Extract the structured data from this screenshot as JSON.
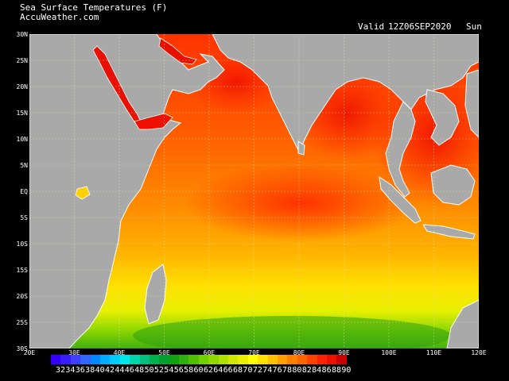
{
  "header": {
    "title": "Sea Surface Temperatures (F)",
    "source": "AccuWeather.com",
    "valid_label": "Valid",
    "valid_time": "12Z06SEP2020",
    "day": "Sun"
  },
  "map": {
    "lat_labels": [
      "30N",
      "25N",
      "20N",
      "15N",
      "10N",
      "5N",
      "EQ",
      "5S",
      "10S",
      "15S",
      "20S",
      "25S",
      "30S"
    ],
    "lon_labels": [
      "20E",
      "30E",
      "40E",
      "50E",
      "60E",
      "70E",
      "80E",
      "90E",
      "100E",
      "110E",
      "120E"
    ],
    "land_color": "#a9a9a9",
    "outline_color": "#ffffff",
    "grid_color": "#e0e0a0"
  },
  "legend": {
    "values": [
      "32",
      "34",
      "36",
      "38",
      "40",
      "42",
      "44",
      "46",
      "48",
      "50",
      "52",
      "54",
      "56",
      "58",
      "60",
      "62",
      "64",
      "66",
      "68",
      "70",
      "72",
      "74",
      "76",
      "78",
      "80",
      "82",
      "84",
      "86",
      "88",
      "90"
    ],
    "colors": [
      "#3300ff",
      "#3a1cff",
      "#3f3fff",
      "#3366ff",
      "#0088ff",
      "#00aaff",
      "#00ccff",
      "#00e5e5",
      "#00d4aa",
      "#00c080",
      "#00b050",
      "#00a030",
      "#10a010",
      "#30b010",
      "#50c000",
      "#70d000",
      "#90d800",
      "#b0e000",
      "#d0e800",
      "#e8f000",
      "#ffff00",
      "#ffe000",
      "#ffc000",
      "#ffa000",
      "#ff8000",
      "#ff6600",
      "#ff4400",
      "#ff2200",
      "#ee1100",
      "#cc0000"
    ]
  }
}
